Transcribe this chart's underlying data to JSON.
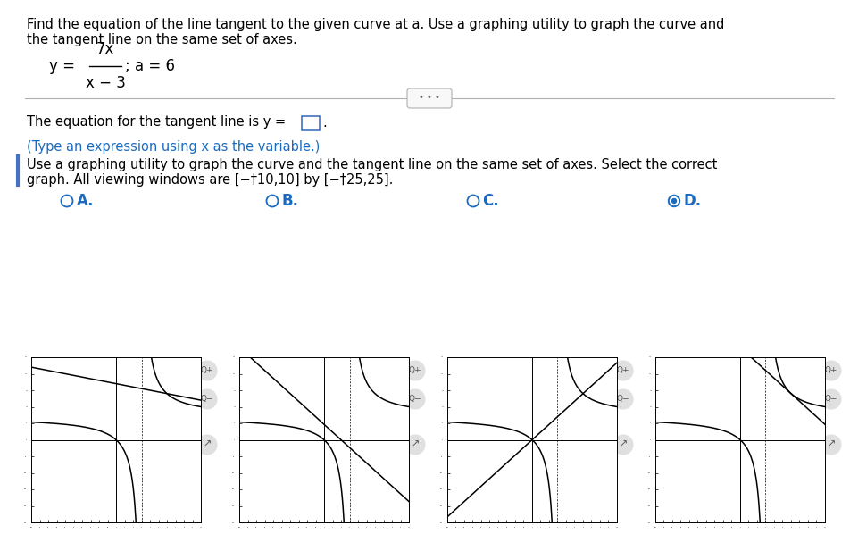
{
  "title_line1": "Find the equation of the line tangent to the given curve at a. Use a graphing utility to graph the curve and",
  "title_line2": "the tangent line on the same set of axes.",
  "tangent_label": "The equation for the tangent line is y =",
  "hint_text": "(Type an expression using x as the variable.)",
  "hint_color": "#1a6bbf",
  "instruction2_line1": "Use a graphing utility to graph the curve and the tangent line on the same set of axes. Select the correct",
  "instruction2_line2": "graph. All viewing windows are [−†10,10] by [−†25,25].",
  "options": [
    "A.",
    "B.",
    "C.",
    "D."
  ],
  "correct_option": "D",
  "option_label_color": "#1a6bbf",
  "bg_color": "#ffffff",
  "text_color": "#000000",
  "xmin": -10,
  "xmax": 10,
  "ymin": -25,
  "ymax": 25
}
